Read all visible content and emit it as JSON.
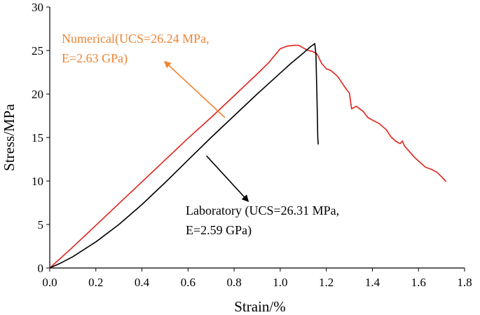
{
  "chart_data": {
    "type": "line",
    "xlabel": "Strain/%",
    "ylabel": "Stress/MPa",
    "xlim": [
      0.0,
      1.8
    ],
    "ylim": [
      0,
      30
    ],
    "x_ticks": [
      "0.0",
      "0.2",
      "0.4",
      "0.6",
      "0.8",
      "1.0",
      "1.2",
      "1.4",
      "1.6",
      "1.8"
    ],
    "y_ticks": [
      "0",
      "5",
      "10",
      "15",
      "20",
      "25",
      "30"
    ],
    "grid": false,
    "series": [
      {
        "color": "#e0221b",
        "points": [
          [
            0.0,
            0.0
          ],
          [
            0.1,
            2.4
          ],
          [
            0.2,
            4.9
          ],
          [
            0.3,
            7.4
          ],
          [
            0.4,
            9.9
          ],
          [
            0.5,
            12.4
          ],
          [
            0.6,
            14.9
          ],
          [
            0.7,
            17.3
          ],
          [
            0.8,
            19.8
          ],
          [
            0.9,
            22.3
          ],
          [
            0.95,
            23.6
          ],
          [
            1.0,
            25.2
          ],
          [
            1.03,
            25.5
          ],
          [
            1.06,
            25.6
          ],
          [
            1.08,
            25.6
          ],
          [
            1.1,
            25.3
          ],
          [
            1.12,
            25.0
          ],
          [
            1.14,
            24.9
          ],
          [
            1.16,
            24.6
          ],
          [
            1.18,
            23.5
          ],
          [
            1.2,
            22.9
          ],
          [
            1.22,
            22.7
          ],
          [
            1.25,
            22.0
          ],
          [
            1.28,
            20.8
          ],
          [
            1.3,
            20.1
          ],
          [
            1.31,
            18.3
          ],
          [
            1.33,
            18.6
          ],
          [
            1.36,
            18.0
          ],
          [
            1.38,
            17.3
          ],
          [
            1.4,
            17.0
          ],
          [
            1.43,
            16.6
          ],
          [
            1.46,
            15.9
          ],
          [
            1.48,
            15.1
          ],
          [
            1.5,
            14.6
          ],
          [
            1.52,
            14.3
          ],
          [
            1.53,
            14.6
          ],
          [
            1.54,
            14.0
          ],
          [
            1.56,
            13.4
          ],
          [
            1.58,
            12.8
          ],
          [
            1.6,
            12.3
          ],
          [
            1.63,
            11.6
          ],
          [
            1.66,
            11.3
          ],
          [
            1.68,
            11.0
          ],
          [
            1.7,
            10.5
          ],
          [
            1.72,
            9.9
          ]
        ]
      },
      {
        "color": "#000000",
        "points": [
          [
            0.0,
            0.0
          ],
          [
            0.05,
            0.6
          ],
          [
            0.1,
            1.3
          ],
          [
            0.2,
            3.0
          ],
          [
            0.3,
            5.0
          ],
          [
            0.4,
            7.3
          ],
          [
            0.5,
            9.8
          ],
          [
            0.6,
            12.4
          ],
          [
            0.7,
            15.0
          ],
          [
            0.8,
            17.5
          ],
          [
            0.9,
            20.0
          ],
          [
            1.0,
            22.4
          ],
          [
            1.05,
            23.6
          ],
          [
            1.1,
            24.7
          ],
          [
            1.13,
            25.4
          ],
          [
            1.15,
            25.8
          ],
          [
            1.155,
            24.5
          ],
          [
            1.16,
            19.0
          ],
          [
            1.163,
            15.0
          ],
          [
            1.165,
            14.2
          ]
        ]
      }
    ],
    "annotations": [
      {
        "line1": "Numerical(UCS=26.24 MPa,",
        "line2": "E=2.63  GPa)",
        "color": "#ee8433",
        "arrow_from": [
          0.76,
          17.3
        ],
        "arrow_to": [
          0.5,
          23.7
        ]
      },
      {
        "line1": "Laboratory (UCS=26.31 MPa,",
        "line2": "E=2.59  GPa)",
        "color": "#000000",
        "arrow_from": [
          0.68,
          12.9
        ],
        "arrow_to": [
          0.86,
          7.7
        ]
      }
    ]
  }
}
